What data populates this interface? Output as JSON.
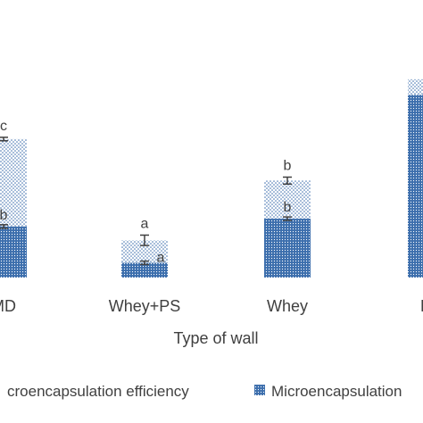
{
  "chart_data": {
    "type": "bar",
    "xlabel": "Type of wall",
    "categories": [
      "MD",
      "Whey+PS",
      "Whey",
      "PS"
    ],
    "series": [
      {
        "name": "Microencapsulation yield",
        "values": [
          59,
          17,
          68,
          211
        ],
        "errors": [
          2,
          2,
          2,
          0
        ],
        "letters": [
          "b",
          "a",
          "b",
          ""
        ],
        "color": "#3d6fad",
        "pattern": "dense-dots"
      },
      {
        "name": "Microencapsulation efficiency",
        "values": [
          160,
          43,
          112,
          229
        ],
        "errors": [
          2,
          6,
          4,
          0
        ],
        "letters": [
          "c",
          "a",
          "b",
          ""
        ],
        "color": "#3d6fad",
        "pattern": "sparse-dots"
      }
    ],
    "legend": {
      "position": "bottom",
      "labels": [
        "croencapsulation efficiency",
        "Microencapsulation"
      ]
    },
    "grid": false
  }
}
